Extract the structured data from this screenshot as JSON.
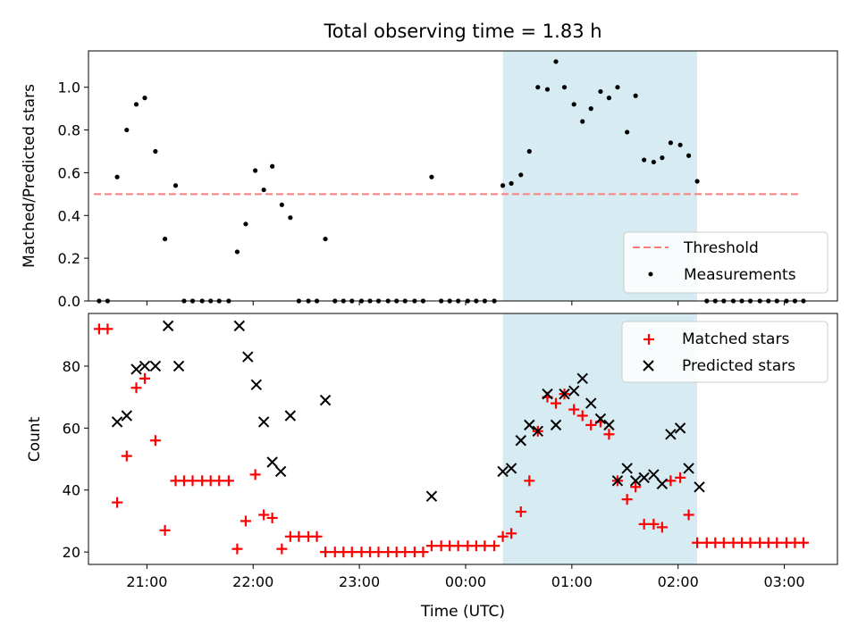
{
  "chart_data": {
    "type": "scatter",
    "title": "Total observing time = 1.83 h",
    "xlabel": "Time (UTC)",
    "x_unit": "hours UTC (values past 24 are after midnight)",
    "xlim": [
      20.45,
      27.5
    ],
    "xticks": [
      {
        "value": 21,
        "label": "21:00"
      },
      {
        "value": 22,
        "label": "22:00"
      },
      {
        "value": 23,
        "label": "23:00"
      },
      {
        "value": 24,
        "label": "00:00"
      },
      {
        "value": 25,
        "label": "01:00"
      },
      {
        "value": 26,
        "label": "02:00"
      },
      {
        "value": 27,
        "label": "03:00"
      }
    ],
    "shaded_interval": {
      "x": [
        24.35,
        26.18
      ],
      "color": "#add8e6"
    },
    "top": {
      "ylabel": "Matched/Predicted stars",
      "ylim": [
        0,
        1.17
      ],
      "yticks": [
        {
          "value": 0.0,
          "label": "0.0"
        },
        {
          "value": 0.2,
          "label": "0.2"
        },
        {
          "value": 0.4,
          "label": "0.4"
        },
        {
          "value": 0.6,
          "label": "0.6"
        },
        {
          "value": 0.8,
          "label": "0.8"
        },
        {
          "value": 1.0,
          "label": "1.0"
        }
      ],
      "threshold": {
        "name": "Threshold",
        "y": 0.5,
        "x": [
          20.5,
          27.15
        ],
        "color": "#ff7f7f"
      },
      "measurements": {
        "name": "Measurements",
        "color": "#000000",
        "points": [
          [
            20.55,
            0.0
          ],
          [
            20.63,
            0.0
          ],
          [
            20.72,
            0.58
          ],
          [
            20.81,
            0.8
          ],
          [
            20.9,
            0.92
          ],
          [
            20.98,
            0.95
          ],
          [
            21.08,
            0.7
          ],
          [
            21.17,
            0.29
          ],
          [
            21.27,
            0.54
          ],
          [
            21.35,
            0.0
          ],
          [
            21.43,
            0.0
          ],
          [
            21.52,
            0.0
          ],
          [
            21.6,
            0.0
          ],
          [
            21.68,
            0.0
          ],
          [
            21.77,
            0.0
          ],
          [
            21.85,
            0.23
          ],
          [
            21.93,
            0.36
          ],
          [
            22.02,
            0.61
          ],
          [
            22.1,
            0.52
          ],
          [
            22.18,
            0.63
          ],
          [
            22.27,
            0.45
          ],
          [
            22.35,
            0.39
          ],
          [
            22.43,
            0.0
          ],
          [
            22.52,
            0.0
          ],
          [
            22.6,
            0.0
          ],
          [
            22.68,
            0.29
          ],
          [
            22.77,
            0.0
          ],
          [
            22.85,
            0.0
          ],
          [
            22.93,
            0.0
          ],
          [
            23.02,
            0.0
          ],
          [
            23.1,
            0.0
          ],
          [
            23.18,
            0.0
          ],
          [
            23.27,
            0.0
          ],
          [
            23.35,
            0.0
          ],
          [
            23.43,
            0.0
          ],
          [
            23.52,
            0.0
          ],
          [
            23.6,
            0.0
          ],
          [
            23.68,
            0.58
          ],
          [
            23.77,
            0.0
          ],
          [
            23.85,
            0.0
          ],
          [
            23.93,
            0.0
          ],
          [
            24.02,
            0.0
          ],
          [
            24.1,
            0.0
          ],
          [
            24.18,
            0.0
          ],
          [
            24.27,
            0.0
          ],
          [
            24.35,
            0.54
          ],
          [
            24.43,
            0.55
          ],
          [
            24.52,
            0.59
          ],
          [
            24.6,
            0.7
          ],
          [
            24.68,
            1.0
          ],
          [
            24.77,
            0.99
          ],
          [
            24.85,
            1.12
          ],
          [
            24.93,
            1.0
          ],
          [
            25.02,
            0.92
          ],
          [
            25.1,
            0.84
          ],
          [
            25.18,
            0.9
          ],
          [
            25.27,
            0.98
          ],
          [
            25.35,
            0.95
          ],
          [
            25.43,
            1.0
          ],
          [
            25.52,
            0.79
          ],
          [
            25.6,
            0.96
          ],
          [
            25.68,
            0.66
          ],
          [
            25.77,
            0.65
          ],
          [
            25.85,
            0.67
          ],
          [
            25.93,
            0.74
          ],
          [
            26.02,
            0.73
          ],
          [
            26.1,
            0.68
          ],
          [
            26.18,
            0.56
          ],
          [
            26.27,
            0.0
          ],
          [
            26.35,
            0.0
          ],
          [
            26.43,
            0.0
          ],
          [
            26.52,
            0.0
          ],
          [
            26.6,
            0.0
          ],
          [
            26.68,
            0.0
          ],
          [
            26.77,
            0.0
          ],
          [
            26.85,
            0.0
          ],
          [
            26.93,
            0.0
          ],
          [
            27.02,
            0.0
          ],
          [
            27.1,
            0.0
          ],
          [
            27.18,
            0.0
          ]
        ]
      },
      "legend": {
        "position": "lower right",
        "entries": [
          "Threshold",
          "Measurements"
        ]
      }
    },
    "bottom": {
      "ylabel": "Count",
      "ylim": [
        16,
        97
      ],
      "yticks": [
        {
          "value": 20,
          "label": "20"
        },
        {
          "value": 40,
          "label": "40"
        },
        {
          "value": 60,
          "label": "60"
        },
        {
          "value": 80,
          "label": "80"
        }
      ],
      "series": [
        {
          "name": "Matched stars",
          "marker": "+",
          "color": "#ff0000",
          "points": [
            [
              20.55,
              92
            ],
            [
              20.63,
              92
            ],
            [
              20.72,
              36
            ],
            [
              20.81,
              51
            ],
            [
              20.9,
              73
            ],
            [
              20.98,
              76
            ],
            [
              21.08,
              56
            ],
            [
              21.17,
              27
            ],
            [
              21.27,
              43
            ],
            [
              21.35,
              43
            ],
            [
              21.43,
              43
            ],
            [
              21.52,
              43
            ],
            [
              21.6,
              43
            ],
            [
              21.68,
              43
            ],
            [
              21.77,
              43
            ],
            [
              21.85,
              21
            ],
            [
              21.93,
              30
            ],
            [
              22.02,
              45
            ],
            [
              22.1,
              32
            ],
            [
              22.18,
              31
            ],
            [
              22.27,
              21
            ],
            [
              22.35,
              25
            ],
            [
              22.43,
              25
            ],
            [
              22.52,
              25
            ],
            [
              22.6,
              25
            ],
            [
              22.68,
              20
            ],
            [
              22.77,
              20
            ],
            [
              22.85,
              20
            ],
            [
              22.93,
              20
            ],
            [
              23.02,
              20
            ],
            [
              23.1,
              20
            ],
            [
              23.18,
              20
            ],
            [
              23.27,
              20
            ],
            [
              23.35,
              20
            ],
            [
              23.43,
              20
            ],
            [
              23.52,
              20
            ],
            [
              23.6,
              20
            ],
            [
              23.68,
              22
            ],
            [
              23.77,
              22
            ],
            [
              23.85,
              22
            ],
            [
              23.93,
              22
            ],
            [
              24.02,
              22
            ],
            [
              24.1,
              22
            ],
            [
              24.18,
              22
            ],
            [
              24.27,
              22
            ],
            [
              24.35,
              25
            ],
            [
              24.43,
              26
            ],
            [
              24.52,
              33
            ],
            [
              24.6,
              43
            ],
            [
              24.68,
              59
            ],
            [
              24.77,
              70
            ],
            [
              24.85,
              68
            ],
            [
              24.93,
              71
            ],
            [
              25.02,
              66
            ],
            [
              25.1,
              64
            ],
            [
              25.18,
              61
            ],
            [
              25.27,
              62
            ],
            [
              25.35,
              58
            ],
            [
              25.43,
              43
            ],
            [
              25.52,
              37
            ],
            [
              25.6,
              41
            ],
            [
              25.68,
              29
            ],
            [
              25.77,
              29
            ],
            [
              25.85,
              28
            ],
            [
              25.93,
              43
            ],
            [
              26.02,
              44
            ],
            [
              26.1,
              32
            ],
            [
              26.18,
              23
            ],
            [
              26.27,
              23
            ],
            [
              26.35,
              23
            ],
            [
              26.43,
              23
            ],
            [
              26.52,
              23
            ],
            [
              26.6,
              23
            ],
            [
              26.68,
              23
            ],
            [
              26.77,
              23
            ],
            [
              26.85,
              23
            ],
            [
              26.93,
              23
            ],
            [
              27.02,
              23
            ],
            [
              27.1,
              23
            ],
            [
              27.18,
              23
            ]
          ]
        },
        {
          "name": "Predicted stars",
          "marker": "x",
          "color": "#000000",
          "points": [
            [
              20.72,
              62
            ],
            [
              20.81,
              64
            ],
            [
              20.9,
              79
            ],
            [
              20.98,
              80
            ],
            [
              21.08,
              80
            ],
            [
              21.2,
              93
            ],
            [
              21.3,
              80
            ],
            [
              21.87,
              93
            ],
            [
              21.95,
              83
            ],
            [
              22.03,
              74
            ],
            [
              22.1,
              62
            ],
            [
              22.18,
              49
            ],
            [
              22.26,
              46
            ],
            [
              22.35,
              64
            ],
            [
              22.68,
              69
            ],
            [
              23.68,
              38
            ],
            [
              24.35,
              46
            ],
            [
              24.43,
              47
            ],
            [
              24.52,
              56
            ],
            [
              24.6,
              61
            ],
            [
              24.68,
              59
            ],
            [
              24.77,
              71
            ],
            [
              24.85,
              61
            ],
            [
              24.93,
              71
            ],
            [
              25.02,
              72
            ],
            [
              25.1,
              76
            ],
            [
              25.18,
              68
            ],
            [
              25.27,
              63
            ],
            [
              25.35,
              61
            ],
            [
              25.43,
              43
            ],
            [
              25.52,
              47
            ],
            [
              25.6,
              43
            ],
            [
              25.68,
              44
            ],
            [
              25.77,
              45
            ],
            [
              25.85,
              42
            ],
            [
              25.93,
              58
            ],
            [
              26.02,
              60
            ],
            [
              26.1,
              47
            ],
            [
              26.2,
              41
            ]
          ]
        }
      ],
      "legend": {
        "position": "upper right",
        "entries": [
          "Matched stars",
          "Predicted stars"
        ]
      }
    }
  }
}
